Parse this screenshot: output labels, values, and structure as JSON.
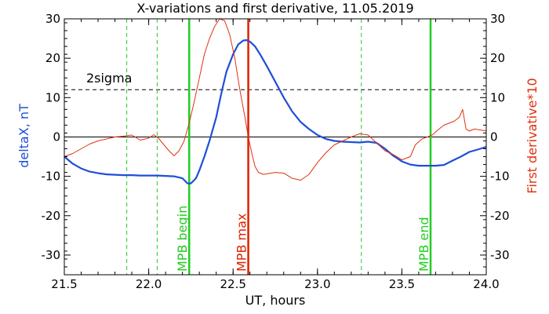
{
  "chart_data": {
    "type": "line",
    "title": "X-variations and first derivative, 11.05.2019",
    "xlabel": "UT, hours",
    "ylabel_left": "deltaX, nT",
    "ylabel_right": "First derivative*10",
    "xlim": [
      21.5,
      24.0
    ],
    "ylim": [
      -35,
      30
    ],
    "x_ticks": [
      "21.5",
      "22.0",
      "22.5",
      "23.0",
      "23.5",
      "24.0"
    ],
    "x_tick_values": [
      21.5,
      22.0,
      22.5,
      23.0,
      23.5,
      24.0
    ],
    "y_ticks": [
      "-30",
      "-20",
      "-10",
      "0",
      "10",
      "20",
      "30"
    ],
    "y_tick_values": [
      -30,
      -20,
      -10,
      0,
      10,
      20,
      30
    ],
    "colors": {
      "deltaX": "#1f4fd6",
      "derivative": "#e03010",
      "mpb_boundary": "#22cc22",
      "mpb_max": "#dd2200",
      "axis": "#000000"
    },
    "series": [
      {
        "name": "deltaX, nT",
        "color": "#1f4fd6",
        "x": [
          21.5,
          21.55,
          21.6,
          21.65,
          21.7,
          21.75,
          21.8,
          21.85,
          21.9,
          21.95,
          22.0,
          22.05,
          22.1,
          22.15,
          22.2,
          22.23,
          22.25,
          22.28,
          22.3,
          22.33,
          22.36,
          22.4,
          22.43,
          22.46,
          22.5,
          22.53,
          22.56,
          22.58,
          22.6,
          22.63,
          22.66,
          22.7,
          22.75,
          22.8,
          22.85,
          22.9,
          22.95,
          23.0,
          23.05,
          23.1,
          23.15,
          23.2,
          23.25,
          23.3,
          23.35,
          23.4,
          23.45,
          23.5,
          23.55,
          23.6,
          23.65,
          23.7,
          23.75,
          23.8,
          23.85,
          23.9,
          23.95,
          24.0
        ],
        "values": [
          -5.0,
          -6.8,
          -8.0,
          -8.8,
          -9.2,
          -9.5,
          -9.6,
          -9.7,
          -9.7,
          -9.8,
          -9.8,
          -9.8,
          -9.9,
          -10.0,
          -10.5,
          -11.8,
          -11.8,
          -10.5,
          -8.5,
          -5.0,
          -1.0,
          5.0,
          11.0,
          16.5,
          21.0,
          23.5,
          24.5,
          24.6,
          24.2,
          23.0,
          21.0,
          18.0,
          14.0,
          10.0,
          6.5,
          3.8,
          2.0,
          0.5,
          -0.5,
          -1.0,
          -1.2,
          -1.3,
          -1.4,
          -1.2,
          -1.5,
          -3.0,
          -4.8,
          -6.2,
          -7.0,
          -7.3,
          -7.3,
          -7.3,
          -7.1,
          -6.0,
          -5.0,
          -3.8,
          -3.2,
          -2.5
        ]
      },
      {
        "name": "First derivative*10",
        "color": "#e03010",
        "x": [
          21.5,
          21.55,
          21.6,
          21.65,
          21.7,
          21.75,
          21.8,
          21.85,
          21.9,
          21.95,
          22.0,
          22.03,
          22.06,
          22.09,
          22.12,
          22.15,
          22.18,
          22.21,
          22.24,
          22.27,
          22.3,
          22.33,
          22.36,
          22.39,
          22.42,
          22.45,
          22.48,
          22.51,
          22.54,
          22.57,
          22.59,
          22.61,
          22.63,
          22.65,
          22.68,
          22.71,
          22.75,
          22.8,
          22.85,
          22.9,
          22.95,
          23.0,
          23.05,
          23.1,
          23.15,
          23.2,
          23.25,
          23.3,
          23.35,
          23.4,
          23.45,
          23.5,
          23.55,
          23.58,
          23.62,
          23.65,
          23.68,
          23.72,
          23.75,
          23.78,
          23.81,
          23.84,
          23.86,
          23.88,
          23.9,
          23.93,
          23.96,
          24.0
        ],
        "values": [
          -5.0,
          -4.2,
          -3.0,
          -1.8,
          -1.0,
          -0.5,
          0.0,
          0.2,
          0.5,
          -0.8,
          -0.3,
          0.6,
          -0.4,
          -2.0,
          -3.5,
          -4.8,
          -3.5,
          -1.0,
          3.5,
          9.0,
          15.0,
          21.0,
          25.0,
          28.0,
          30.0,
          29.5,
          26.0,
          20.0,
          12.0,
          5.0,
          0.0,
          -4.0,
          -7.5,
          -9.0,
          -9.5,
          -9.3,
          -9.0,
          -9.2,
          -10.5,
          -11.0,
          -9.5,
          -6.5,
          -4.0,
          -2.0,
          -1.0,
          0.0,
          0.8,
          0.5,
          -1.5,
          -3.5,
          -4.5,
          -5.8,
          -5.0,
          -2.0,
          -0.5,
          0.0,
          0.5,
          2.0,
          3.0,
          3.5,
          4.0,
          5.0,
          7.0,
          2.0,
          1.5,
          2.0,
          1.8,
          1.5
        ]
      }
    ],
    "reference_lines": [
      {
        "label": "2sigma",
        "y": 12,
        "style": "dashed",
        "color": "#000000"
      },
      {
        "label": "",
        "y": 0,
        "style": "solid",
        "color": "#000000"
      }
    ],
    "vertical_lines": [
      {
        "x": 21.87,
        "style": "dashed",
        "color": "#22cc22",
        "label": ""
      },
      {
        "x": 22.05,
        "style": "dashed",
        "color": "#22cc22",
        "label": ""
      },
      {
        "x": 22.24,
        "style": "solid",
        "color": "#22cc22",
        "label": "MPB begin"
      },
      {
        "x": 22.59,
        "style": "solid",
        "color": "#dd2200",
        "label": "MPB max"
      },
      {
        "x": 23.26,
        "style": "dashed",
        "color": "#22cc22",
        "label": ""
      },
      {
        "x": 23.67,
        "style": "solid",
        "color": "#22cc22",
        "label": "MPB end"
      }
    ],
    "annotations": [
      {
        "text": "2sigma",
        "x": 21.63,
        "y": 15
      }
    ]
  }
}
